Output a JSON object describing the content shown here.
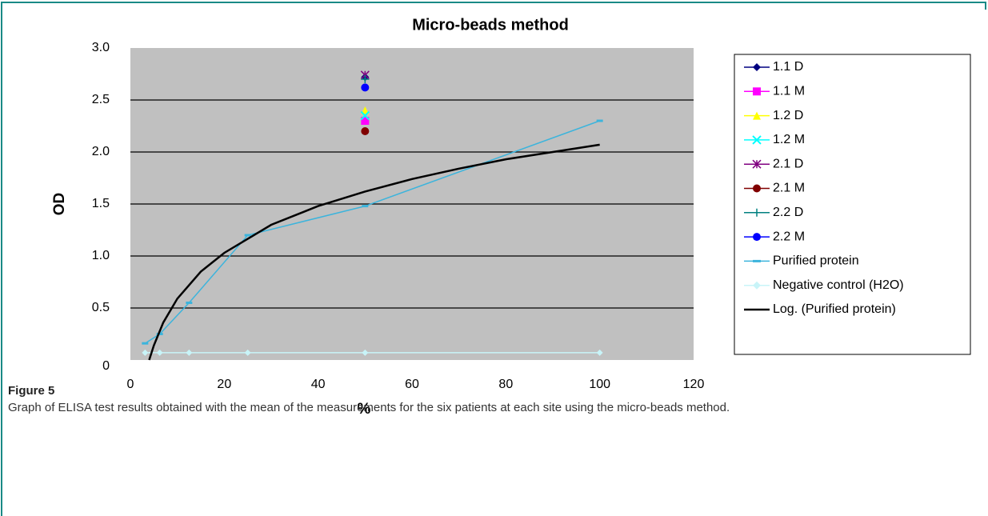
{
  "chart_data": {
    "type": "line",
    "title": "Micro-beads method",
    "x_label": "%",
    "y_label": "OD",
    "xlim": [
      0,
      120
    ],
    "xticks": [
      0,
      20,
      40,
      60,
      80,
      100,
      120
    ],
    "ylim": [
      0,
      3
    ],
    "yticks": [
      0,
      0.5,
      {
        "value": 1,
        "label": "1.0"
      },
      1.5,
      {
        "value": 2,
        "label": "2.0"
      },
      2.5,
      {
        "value": 3,
        "label": "3.0"
      }
    ],
    "grid": true,
    "legend": "right",
    "series": [
      {
        "name": "1.1 D",
        "color": "#000080",
        "marker": "diamond",
        "x": [
          50
        ],
        "values": [
          2.72
        ]
      },
      {
        "name": "1.1 M",
        "color": "#ff00ff",
        "marker": "square",
        "x": [
          50
        ],
        "values": [
          2.3
        ]
      },
      {
        "name": "1.2 D",
        "color": "#ffff00",
        "marker": "triangle",
        "x": [
          50
        ],
        "values": [
          2.4
        ]
      },
      {
        "name": "1.2 M",
        "color": "#00ffff",
        "marker": "x",
        "x": [
          50
        ],
        "values": [
          2.35
        ]
      },
      {
        "name": "2.1 D",
        "color": "#800080",
        "marker": "star",
        "x": [
          50
        ],
        "values": [
          2.74
        ]
      },
      {
        "name": "2.1 M",
        "color": "#800000",
        "marker": "circle",
        "x": [
          50
        ],
        "values": [
          2.2
        ]
      },
      {
        "name": "2.2 D",
        "color": "#008080",
        "marker": "plus",
        "x": [
          50
        ],
        "values": [
          2.7
        ]
      },
      {
        "name": "2.2 M",
        "color": "#0000ff",
        "marker": "circle",
        "x": [
          50
        ],
        "values": [
          2.62
        ]
      },
      {
        "name": "Purified protein",
        "color": "#3cb4dc",
        "marker": "dash",
        "x": [
          3.125,
          6.25,
          12.5,
          25,
          50,
          100
        ],
        "values": [
          0.16,
          0.25,
          0.55,
          1.2,
          1.48,
          2.3
        ]
      },
      {
        "name": "Negative control (H2O)",
        "color": "#c8f4f8",
        "marker": "diamond",
        "x": [
          3.125,
          6.25,
          12.5,
          25,
          50,
          100
        ],
        "values": [
          0.07,
          0.07,
          0.07,
          0.07,
          0.07,
          0.07
        ]
      },
      {
        "name": "Log. (Purified protein)",
        "color": "#000000",
        "marker": "none",
        "x": [
          4,
          5,
          7,
          10,
          15,
          20,
          30,
          40,
          50,
          60,
          70,
          80,
          90,
          100
        ],
        "values": [
          0,
          0.14,
          0.36,
          0.59,
          0.85,
          1.03,
          1.3,
          1.48,
          1.62,
          1.74,
          1.84,
          1.93,
          2.0,
          2.07
        ]
      }
    ]
  },
  "caption": {
    "label": "Figure 5",
    "text": "Graph of ELISA test results obtained with the mean of the measurements for the six patients at each site using the micro-beads method."
  }
}
